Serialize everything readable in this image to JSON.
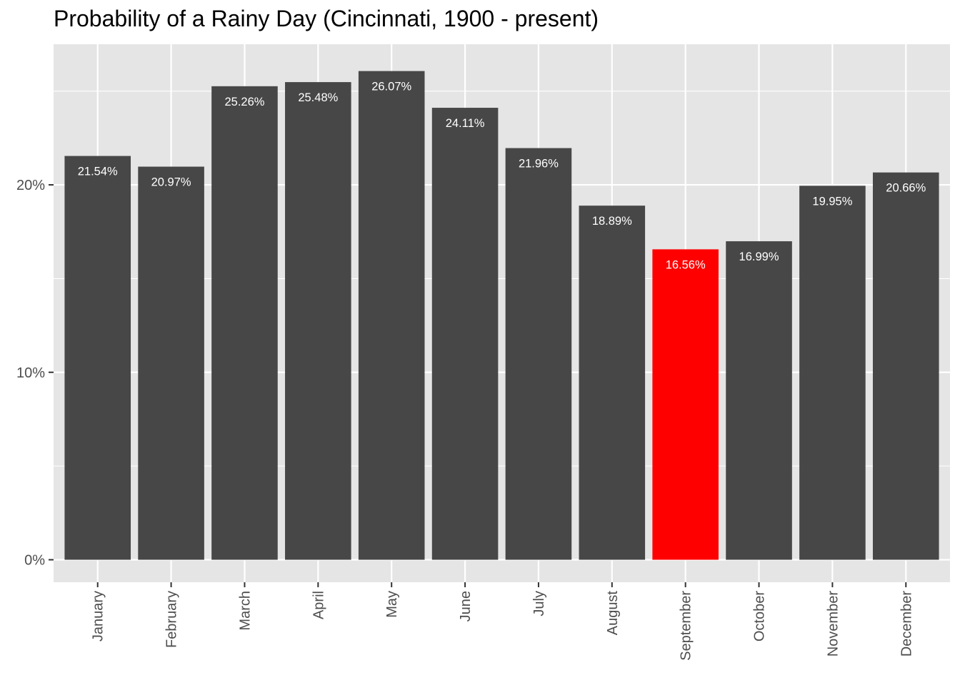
{
  "chart_data": {
    "type": "bar",
    "title": "Probability of a Rainy Day (Cincinnati, 1900 - present)",
    "xlabel": "",
    "ylabel": "",
    "categories": [
      "January",
      "February",
      "March",
      "April",
      "May",
      "June",
      "July",
      "August",
      "September",
      "October",
      "November",
      "December"
    ],
    "values": [
      21.54,
      20.97,
      25.26,
      25.48,
      26.07,
      24.11,
      21.96,
      18.89,
      16.56,
      16.99,
      19.95,
      20.66
    ],
    "value_labels": [
      "21.54%",
      "20.97%",
      "25.26%",
      "25.48%",
      "26.07%",
      "24.11%",
      "21.96%",
      "18.89%",
      "16.56%",
      "16.99%",
      "19.95%",
      "20.66%"
    ],
    "highlight_category": "September",
    "ylim": [
      -1.2,
      27.5
    ],
    "y_ticks": [
      0,
      10,
      20
    ],
    "y_tick_labels": [
      "0%",
      "10%",
      "20%"
    ],
    "x_tick_label_orientation": "vertical",
    "grid": true,
    "legend": "none",
    "colors": {
      "bar": "#474747",
      "highlight": "#ff0000",
      "panel": "#e5e5e5",
      "grid": "#ffffff",
      "tick_label": "#4d4d4d",
      "data_label": "#ffffff"
    }
  }
}
